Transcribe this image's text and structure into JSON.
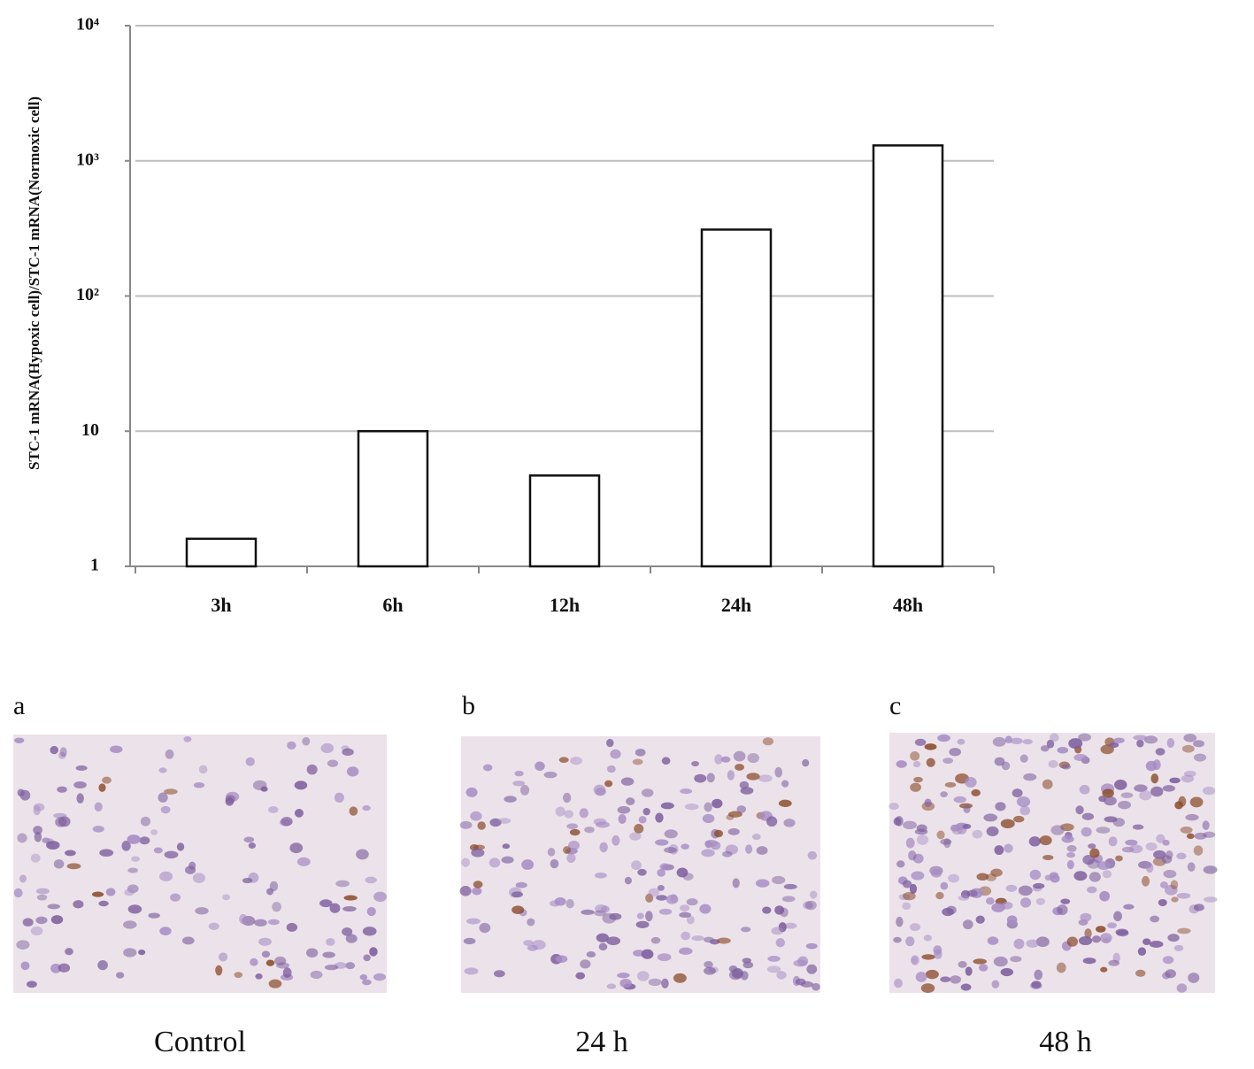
{
  "chart_data": {
    "type": "bar",
    "y_label": "STC-1 mRNA(Hypoxic cell)/STC-1 mRNA(Normoxic cell)",
    "categories": [
      "3h",
      "6h",
      "12h",
      "24h",
      "48h"
    ],
    "values": [
      1.6,
      10,
      4.7,
      310,
      1300
    ],
    "color": "#ffffff",
    "log_scale": true,
    "ylim": [
      1,
      10000
    ],
    "yticks": [
      1,
      10,
      {
        "value": 100,
        "label": "10²"
      },
      {
        "value": 1000,
        "label": "10³"
      },
      {
        "value": 10000,
        "label": "10⁴"
      }
    ],
    "grid": true
  },
  "panels": [
    {
      "letter": "a",
      "caption": "Control"
    },
    {
      "letter": "b",
      "caption": "24 h"
    },
    {
      "letter": "c",
      "caption": "48 h"
    }
  ]
}
